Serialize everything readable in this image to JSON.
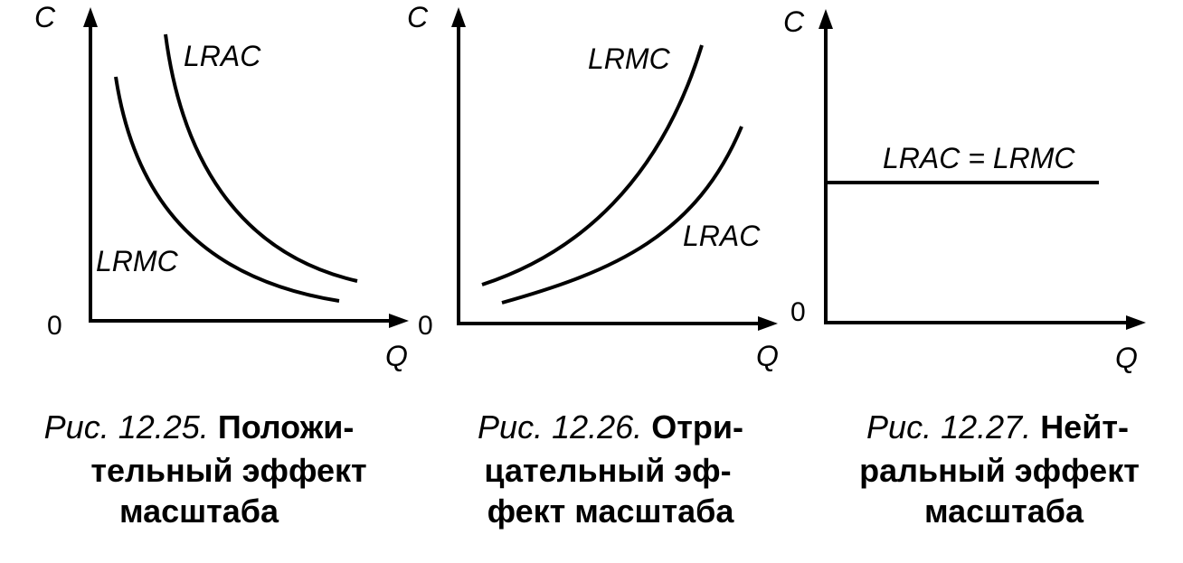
{
  "figures": [
    {
      "y_axis_label": "C",
      "x_axis_label": "Q",
      "origin_label": "0",
      "curves": [
        {
          "label": "LRAC"
        },
        {
          "label": "LRMC"
        }
      ],
      "caption": {
        "number": "Рис. 12.25.",
        "lines": [
          "Положи-",
          "тельный эффект",
          "масштаба"
        ]
      }
    },
    {
      "y_axis_label": "C",
      "x_axis_label": "Q",
      "origin_label": "0",
      "curves": [
        {
          "label": "LRMC"
        },
        {
          "label": "LRAC"
        }
      ],
      "caption": {
        "number": "Рис. 12.26.",
        "lines": [
          "Отри-",
          "цательный эф-",
          "фект масштаба"
        ]
      }
    },
    {
      "y_axis_label": "C",
      "x_axis_label": "Q",
      "origin_label": "0",
      "curves": [
        {
          "label": "LRAC = LRMC"
        }
      ],
      "caption": {
        "number": "Рис. 12.27.",
        "lines": [
          "Нейт-",
          "ральный эффект",
          "масштаба"
        ]
      }
    }
  ]
}
